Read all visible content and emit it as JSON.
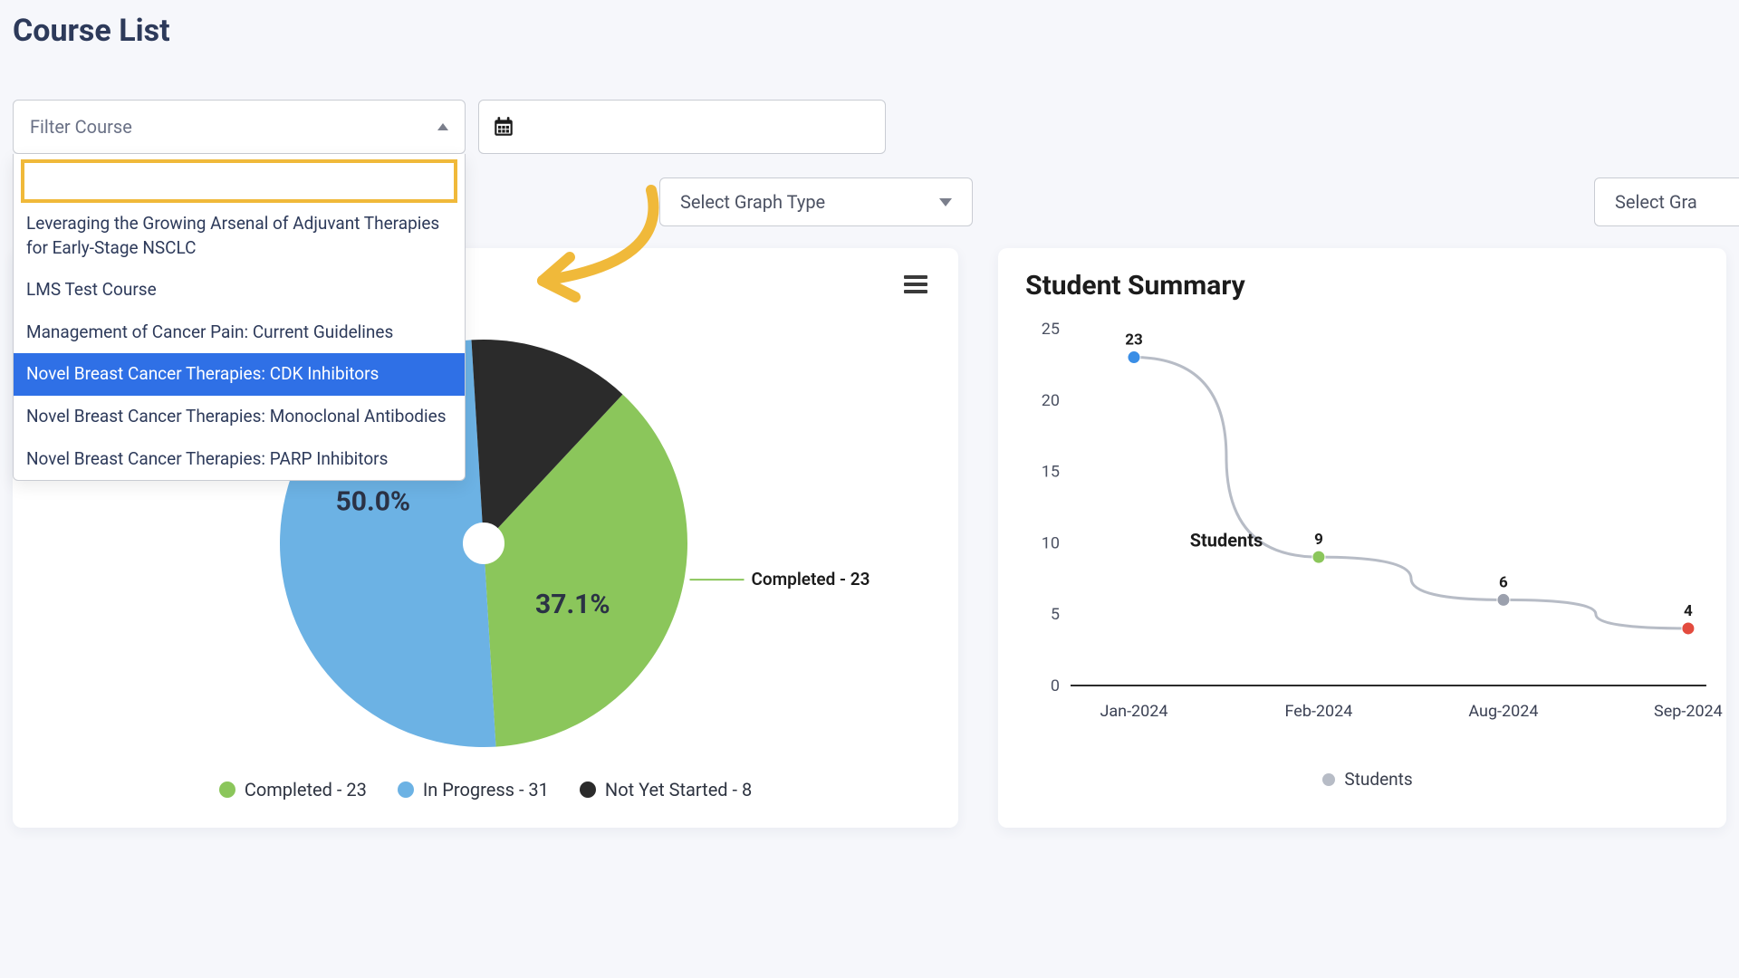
{
  "page": {
    "title": "Course List"
  },
  "filters": {
    "course_select_placeholder": "Filter Course",
    "date_placeholder": "",
    "graph_type_placeholder": "Select Graph Type",
    "graph_type_placeholder_2": "Select Gra"
  },
  "dropdown": {
    "search_value": "",
    "items": [
      {
        "label": "Leveraging the Growing Arsenal of Adjuvant Therapies for Early-Stage NSCLC",
        "selected": false
      },
      {
        "label": "LMS Test Course",
        "selected": false
      },
      {
        "label": "Management of Cancer Pain: Current Guidelines",
        "selected": false
      },
      {
        "label": "Novel Breast Cancer Therapies: CDK Inhibitors",
        "selected": true
      },
      {
        "label": "Novel Breast Cancer Therapies: Monoclonal Antibodies",
        "selected": false
      },
      {
        "label": "Novel Breast Cancer Therapies: PARP Inhibitors",
        "selected": false
      }
    ]
  },
  "pie_chart": {
    "type": "pie",
    "center_hole_radius_ratio": 0.1,
    "background_color": "#ffffff",
    "slices": [
      {
        "name": "Completed",
        "count": 23,
        "percent": 37.1,
        "color": "#8bc65b",
        "label": "Completed - 23",
        "label_angle_deg": 10,
        "label_offset": 170,
        "pct_label": "37.1%",
        "pct_angle_deg": 35,
        "pct_radius": 120
      },
      {
        "name": "In Progress",
        "count": 31,
        "percent": 50.0,
        "color": "#6cb2e4",
        "label": "In Progress - 31",
        "label_angle_deg": 215,
        "label_offset": 230,
        "pct_label": "50.0%",
        "pct_angle_deg": 200,
        "pct_radius": 130
      },
      {
        "name": "Not Yet Started",
        "count": 8,
        "percent": 12.9,
        "color": "#2b2b2b",
        "label": "",
        "label_angle_deg": 0,
        "label_offset": 0,
        "pct_label": "",
        "pct_angle_deg": 0,
        "pct_radius": 0
      }
    ],
    "start_angle_deg": -47,
    "label_fontsize": 19,
    "pct_fontsize": 30,
    "legend": [
      {
        "text": "Completed - 23",
        "color": "#8bc65b"
      },
      {
        "text": "In Progress - 31",
        "color": "#6cb2e4"
      },
      {
        "text": "Not Yet Started - 8",
        "color": "#2b2b2b"
      }
    ]
  },
  "line_chart": {
    "type": "line",
    "title": "Student Summary",
    "series_name": "Students",
    "legend_label": "Students",
    "annotation_label": "Students",
    "x_labels": [
      "Jan-2024",
      "Feb-2024",
      "Aug-2024",
      "Sep-2024"
    ],
    "y_values": [
      23,
      9,
      6,
      4
    ],
    "point_colors": [
      "#3a8ee6",
      "#8bc65b",
      "#9ba0ad",
      "#e34b3e"
    ],
    "value_labels": [
      "23",
      "9",
      "6",
      "4"
    ],
    "ylim": [
      0,
      25
    ],
    "ytick_step": 5,
    "line_color": "#b7bcc6",
    "line_width": 3,
    "grid_color": "#e4e6ec",
    "axis_color": "#2b2b2b",
    "label_fontsize": 18,
    "tick_fontsize": 18,
    "value_fontsize": 17,
    "value_fontweight": 700,
    "background_color": "#ffffff",
    "marker_radius": 7
  },
  "annotation": {
    "arrow_color": "#f0b93a",
    "stroke_width": 12
  }
}
